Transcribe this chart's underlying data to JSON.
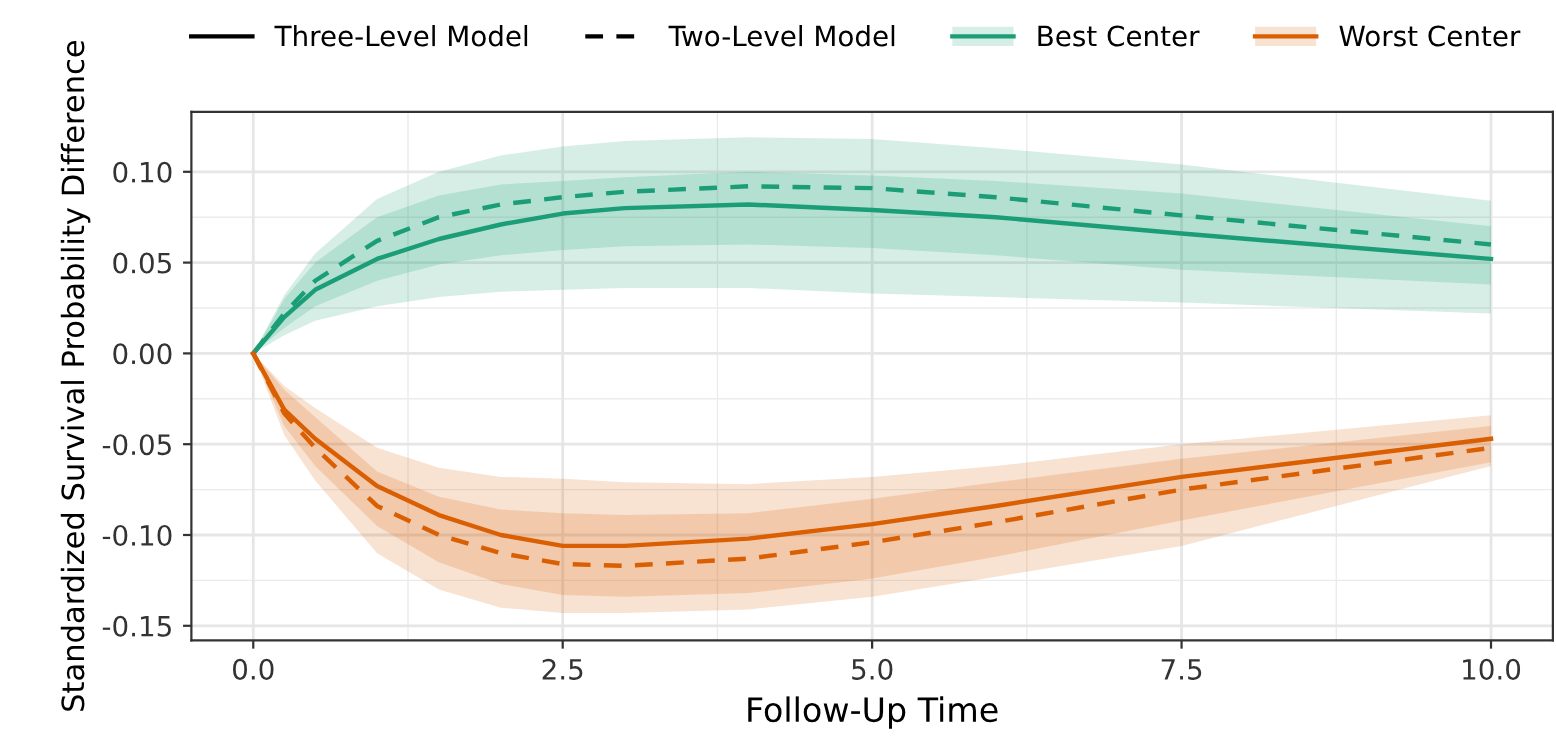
{
  "chart_data": {
    "type": "line",
    "xlabel": "Follow-Up Time",
    "ylabel": "Standardized Survival Probability Difference",
    "xlim": [
      -0.5,
      10.5
    ],
    "ylim": [
      -0.158,
      0.133
    ],
    "xticks": [
      {
        "value": 0,
        "label": "0.0"
      },
      2.5,
      {
        "value": 5,
        "label": "5.0"
      },
      7.5,
      {
        "value": 10,
        "label": "10.0"
      }
    ],
    "yticks": [
      {
        "value": -0.15,
        "label": "-0.15"
      },
      {
        "value": -0.1,
        "label": "-0.10"
      },
      {
        "value": -0.05,
        "label": "-0.05"
      },
      {
        "value": 0,
        "label": "0.00"
      },
      {
        "value": 0.05,
        "label": "0.05"
      },
      {
        "value": 0.1,
        "label": "0.10"
      }
    ],
    "grid": true,
    "legend": "top",
    "series": [
      {
        "name": "Three-Level Model",
        "color": "#000000",
        "line_style": "solid"
      },
      {
        "name": "Two-Level Model",
        "color": "#000000",
        "line_style": "dashed"
      },
      {
        "name": "Best Center",
        "color": "#1b9e77",
        "line_style": "solid",
        "x": [
          0,
          0.25,
          0.5,
          1,
          1.5,
          2,
          2.5,
          3,
          4,
          5,
          6,
          7.5,
          10
        ],
        "values": [
          0,
          0.02,
          0.035,
          0.052,
          0.063,
          0.071,
          0.077,
          0.08,
          0.082,
          0.079,
          0.075,
          0.066,
          0.052
        ],
        "lower": [
          0,
          0.01,
          0.018,
          0.026,
          0.031,
          0.034,
          0.035,
          0.036,
          0.036,
          0.033,
          0.031,
          0.028,
          0.022
        ],
        "upper": [
          0,
          0.03,
          0.05,
          0.075,
          0.087,
          0.093,
          0.095,
          0.097,
          0.1,
          0.098,
          0.095,
          0.088,
          0.07
        ]
      },
      {
        "color": "#1b9e77",
        "line_style": "dashed",
        "x": [
          0,
          0.25,
          0.5,
          1,
          1.5,
          2,
          2.5,
          3,
          4,
          5,
          6,
          7.5,
          10
        ],
        "values": [
          0,
          0.022,
          0.04,
          0.062,
          0.075,
          0.082,
          0.086,
          0.089,
          0.092,
          0.091,
          0.086,
          0.076,
          0.06
        ],
        "lower": [
          0,
          0.014,
          0.026,
          0.04,
          0.049,
          0.054,
          0.057,
          0.059,
          0.06,
          0.058,
          0.054,
          0.046,
          0.038
        ],
        "upper": [
          0,
          0.032,
          0.055,
          0.085,
          0.1,
          0.109,
          0.114,
          0.117,
          0.119,
          0.118,
          0.113,
          0.104,
          0.084
        ]
      },
      {
        "name": "Worst Center",
        "color": "#d95f02",
        "line_style": "solid",
        "x": [
          0,
          0.25,
          0.5,
          1,
          1.5,
          2,
          2.5,
          3,
          4,
          5,
          6,
          7.5,
          10
        ],
        "values": [
          0,
          -0.031,
          -0.047,
          -0.073,
          -0.089,
          -0.1,
          -0.106,
          -0.106,
          -0.102,
          -0.094,
          -0.084,
          -0.068,
          -0.047
        ],
        "lower": [
          0,
          -0.04,
          -0.062,
          -0.095,
          -0.115,
          -0.127,
          -0.133,
          -0.134,
          -0.132,
          -0.124,
          -0.112,
          -0.092,
          -0.06
        ],
        "upper": [
          0,
          -0.018,
          -0.03,
          -0.052,
          -0.063,
          -0.068,
          -0.069,
          -0.071,
          -0.072,
          -0.068,
          -0.062,
          -0.05,
          -0.034
        ]
      },
      {
        "color": "#d95f02",
        "line_style": "dashed",
        "x": [
          0,
          0.25,
          0.5,
          1,
          1.5,
          2,
          2.5,
          3,
          4,
          5,
          6,
          7.5,
          10
        ],
        "values": [
          0,
          -0.033,
          -0.052,
          -0.084,
          -0.1,
          -0.11,
          -0.116,
          -0.117,
          -0.113,
          -0.104,
          -0.093,
          -0.075,
          -0.052
        ],
        "lower": [
          0,
          -0.045,
          -0.07,
          -0.11,
          -0.13,
          -0.14,
          -0.143,
          -0.143,
          -0.141,
          -0.134,
          -0.123,
          -0.106,
          -0.062
        ],
        "upper": [
          0,
          -0.02,
          -0.035,
          -0.065,
          -0.079,
          -0.086,
          -0.088,
          -0.089,
          -0.088,
          -0.08,
          -0.071,
          -0.058,
          -0.04
        ]
      }
    ]
  }
}
